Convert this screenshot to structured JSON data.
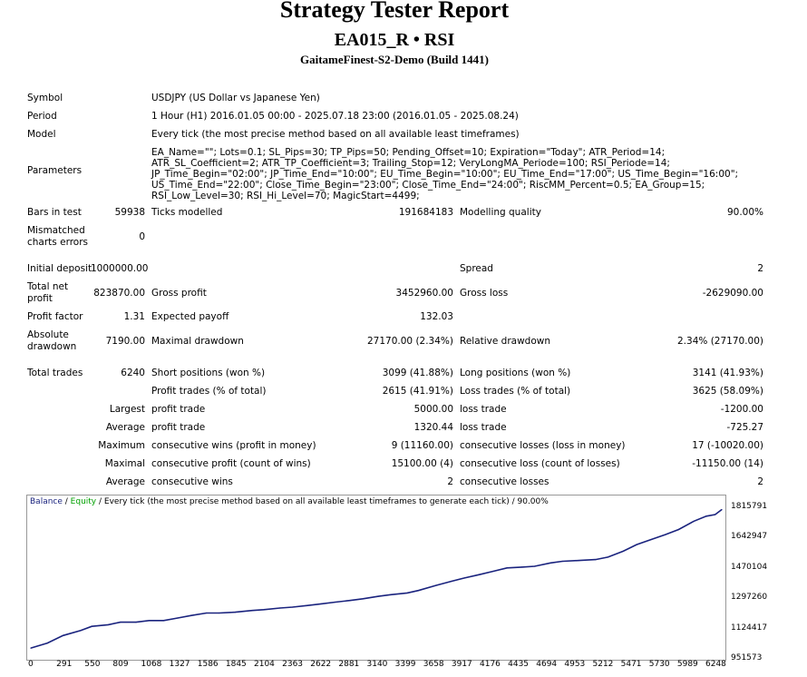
{
  "report": {
    "title": "Strategy Tester Report",
    "subtitle": "EA015_R • RSI",
    "server": "GaitameFinest-S2-Demo (Build 1441)"
  },
  "summary": {
    "symbol_label": "Symbol",
    "symbol_value": "USDJPY (US Dollar vs Japanese Yen)",
    "period_label": "Period",
    "period_value": "1 Hour (H1) 2016.01.05 00:00 - 2025.07.18 23:00 (2016.01.05 - 2025.08.24)",
    "model_label": "Model",
    "model_value": "Every tick (the most precise method based on all available least timeframes)",
    "parameters_label": "Parameters",
    "parameters_value": "EA_Name=\"\"; Lots=0.1; SL_Pips=30; TP_Pips=50; Pending_Offset=10; Expiration=\"Today\"; ATR_Period=14; ATR_SL_Coefficient=2; ATR_TP_Coefficient=3; Trailing_Stop=12; VeryLongMA_Periode=100; RSI_Periode=14; JP_Time_Begin=\"02:00\"; JP_Time_End=\"10:00\"; EU_Time_Begin=\"10:00\"; EU_Time_End=\"17:00\"; US_Time_Begin=\"16:00\"; US_Time_End=\"22:00\"; Close_Time_Begin=\"23:00\"; Close_Time_End=\"24:00\"; RiscMM_Percent=0.5; EA_Group=15; RSI_Low_Level=30; RSI_Hi_Level=70; MagicStart=4499;"
  },
  "stats": {
    "bars_label": "Bars in test",
    "bars_value": "59938",
    "ticks_label": "Ticks modelled",
    "ticks_value": "191684183",
    "quality_label": "Modelling quality",
    "quality_value": "90.00%",
    "mismatch_label_1": "Mismatched",
    "mismatch_label_2": "charts errors",
    "mismatch_value": "0",
    "deposit_label": "Initial deposit",
    "deposit_value": "1000000.00",
    "spread_label": "Spread",
    "spread_value": "2",
    "net_label_1": "Total net",
    "net_label_2": "profit",
    "net_value": "823870.00",
    "gross_profit_label": "Gross profit",
    "gross_profit_value": "3452960.00",
    "gross_loss_label": "Gross loss",
    "gross_loss_value": "-2629090.00",
    "pf_label": "Profit factor",
    "pf_value": "1.31",
    "ep_label": "Expected payoff",
    "ep_value": "132.03",
    "abs_label_1": "Absolute",
    "abs_label_2": "drawdown",
    "abs_value": "7190.00",
    "maxdd_label": "Maximal drawdown",
    "maxdd_value": "27170.00 (2.34%)",
    "reldd_label": "Relative drawdown",
    "reldd_value": "2.34% (27170.00)",
    "trades_label": "Total trades",
    "trades_value": "6240",
    "short_label": "Short positions (won %)",
    "short_value": "3099 (41.88%)",
    "long_label": "Long positions (won %)",
    "long_value": "3141 (41.93%)",
    "ptrades_label": "Profit trades (% of total)",
    "ptrades_value": "2615 (41.91%)",
    "ltrades_label": "Loss trades (% of total)",
    "ltrades_value": "3625 (58.09%)",
    "largest_label": "Largest",
    "largest_pt_label": "profit trade",
    "largest_pt_value": "5000.00",
    "largest_lt_label": "loss trade",
    "largest_lt_value": "-1200.00",
    "average_label": "Average",
    "average_pt_label": "profit trade",
    "average_pt_value": "1320.44",
    "average_lt_label": "loss trade",
    "average_lt_value": "-725.27",
    "maximum_label": "Maximum",
    "maxwins_label": "consecutive wins (profit in money)",
    "maxwins_value": "9 (11160.00)",
    "maxlosses_label": "consecutive losses (loss in money)",
    "maxlosses_value": "17 (-10020.00)",
    "maximal_label": "Maximal",
    "maxprofit_label": "consecutive profit (count of wins)",
    "maxprofit_value": "15100.00 (4)",
    "maxloss_label": "consecutive loss (count of losses)",
    "maxloss_value": "-11150.00 (14)",
    "avg2_label": "Average",
    "avgwins_label": "consecutive wins",
    "avgwins_value": "2",
    "avglosses_label": "consecutive losses",
    "avglosses_value": "2"
  },
  "chart_legend": {
    "balance": "Balance",
    "sep": " / ",
    "equity": "Equity",
    "rest": " / Every tick (the most precise method based on all available least timeframes to generate each tick) / 90.00%"
  },
  "colors": {
    "balance": "#1a237e",
    "equity": "#00a000",
    "axis": "#999999"
  },
  "chart_data": {
    "type": "line",
    "x_ticks": [
      "0",
      "291",
      "550",
      "809",
      "1068",
      "1327",
      "1586",
      "1845",
      "2104",
      "2363",
      "2622",
      "2881",
      "3140",
      "3399",
      "3658",
      "3917",
      "4176",
      "4435",
      "4694",
      "4953",
      "5212",
      "5471",
      "5730",
      "5989",
      "6248"
    ],
    "y_ticks": [
      "1815791",
      "1642947",
      "1470104",
      "1297260",
      "1124417",
      "951573"
    ],
    "ylim": [
      951573,
      1838000
    ],
    "xlim": [
      0,
      6240
    ],
    "series": [
      {
        "name": "Balance",
        "x": [
          0,
          150,
          291,
          450,
          550,
          700,
          809,
          950,
          1068,
          1200,
          1327,
          1450,
          1586,
          1700,
          1845,
          2000,
          2104,
          2250,
          2363,
          2500,
          2622,
          2750,
          2881,
          3000,
          3140,
          3250,
          3399,
          3500,
          3658,
          3800,
          3917,
          4050,
          4176,
          4300,
          4435,
          4550,
          4694,
          4800,
          4953,
          5100,
          5212,
          5350,
          5471,
          5600,
          5730,
          5850,
          5989,
          6100,
          6180,
          6240
        ],
        "y": [
          1000000,
          1030000,
          1075000,
          1105000,
          1130000,
          1140000,
          1155000,
          1155000,
          1165000,
          1165000,
          1180000,
          1195000,
          1210000,
          1210000,
          1215000,
          1225000,
          1230000,
          1240000,
          1245000,
          1255000,
          1265000,
          1275000,
          1285000,
          1295000,
          1310000,
          1320000,
          1330000,
          1345000,
          1375000,
          1400000,
          1420000,
          1440000,
          1460000,
          1480000,
          1485000,
          1490000,
          1510000,
          1520000,
          1525000,
          1530000,
          1545000,
          1580000,
          1620000,
          1650000,
          1680000,
          1710000,
          1760000,
          1790000,
          1800000,
          1830000
        ]
      }
    ]
  }
}
